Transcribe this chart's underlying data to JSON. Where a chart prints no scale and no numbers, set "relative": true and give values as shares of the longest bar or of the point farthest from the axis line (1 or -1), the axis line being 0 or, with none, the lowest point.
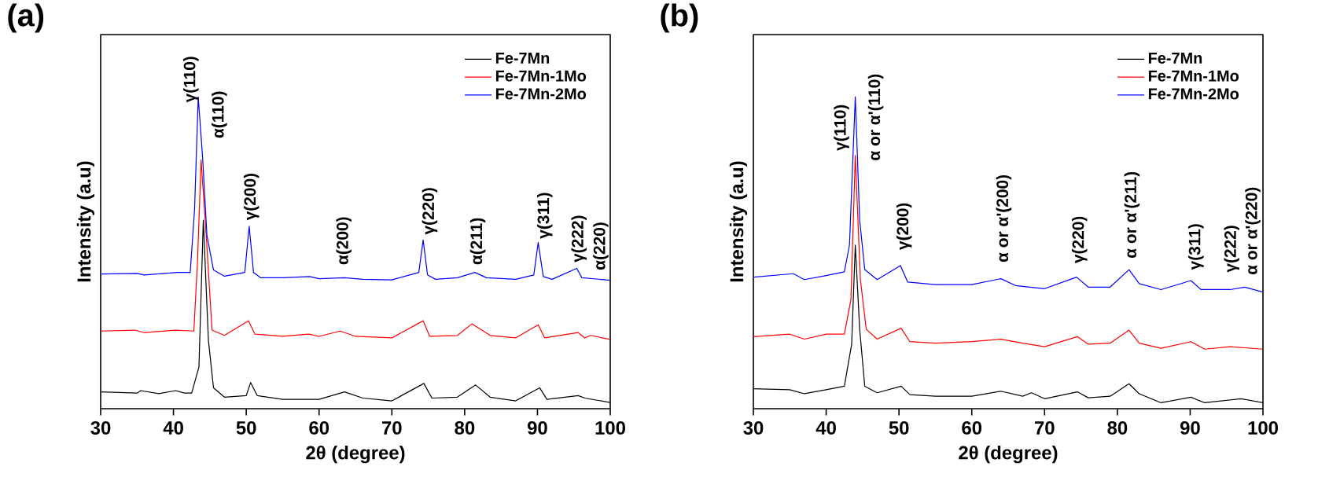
{
  "chart_data": [
    {
      "type": "line",
      "title": "(a)",
      "xlabel": "2θ (degree)",
      "ylabel": "Intensity (a.u)",
      "relative": true,
      "xlim": [
        30,
        100
      ],
      "xticks": [
        30,
        40,
        50,
        60,
        70,
        80,
        90,
        100
      ],
      "legend": "top right",
      "line_style": "solid",
      "series": [
        {
          "name": "Fe-7Mn",
          "color": "#000000",
          "x": [
            30,
            35,
            35.5,
            38,
            40.3,
            41.5,
            42.5,
            43.5,
            44.1,
            44.8,
            45.5,
            47,
            50,
            50.6,
            51.5,
            55,
            60,
            63.5,
            66,
            70,
            74.4,
            75.5,
            79,
            81.5,
            83.5,
            87,
            90.3,
            91.3,
            95.6,
            96.5,
            100
          ],
          "values": [
            0.054,
            0.05,
            0.058,
            0.048,
            0.058,
            0.05,
            0.05,
            0.134,
            0.605,
            0.219,
            0.067,
            0.037,
            0.042,
            0.084,
            0.042,
            0.03,
            0.03,
            0.054,
            0.034,
            0.025,
            0.081,
            0.034,
            0.037,
            0.076,
            0.037,
            0.025,
            0.067,
            0.03,
            0.042,
            0.034,
            0.02
          ]
        },
        {
          "name": "Fe-7Mn-1Mo",
          "color": "#ff0000",
          "x": [
            30,
            34.7,
            36,
            40.3,
            42.8,
            43.3,
            43.8,
            44.5,
            45.3,
            47,
            50.3,
            51.2,
            55,
            58.6,
            60,
            62.9,
            65,
            70,
            74.3,
            75.2,
            79,
            81,
            83.5,
            87,
            90.1,
            91,
            95.6,
            96.5,
            97.3,
            100
          ],
          "values": [
            0.249,
            0.252,
            0.244,
            0.252,
            0.249,
            0.471,
            0.798,
            0.555,
            0.252,
            0.235,
            0.282,
            0.239,
            0.232,
            0.239,
            0.232,
            0.249,
            0.232,
            0.227,
            0.282,
            0.232,
            0.235,
            0.272,
            0.235,
            0.227,
            0.269,
            0.227,
            0.244,
            0.227,
            0.235,
            0.222
          ]
        },
        {
          "name": "Fe-7Mn-2Mo",
          "color": "#0000ff",
          "x": [
            30,
            35,
            36,
            40.5,
            42.3,
            42.9,
            43.4,
            44.0,
            44.6,
            45.5,
            47,
            49.8,
            50.4,
            51.0,
            52,
            55,
            58.7,
            60,
            63.5,
            66,
            70,
            73.7,
            74.3,
            74.9,
            76,
            79,
            81.4,
            83,
            87,
            89.5,
            90.1,
            90.8,
            92,
            95.4,
            96.1,
            100
          ],
          "values": [
            0.432,
            0.434,
            0.429,
            0.437,
            0.437,
            0.639,
            1.0,
            0.807,
            0.555,
            0.445,
            0.425,
            0.437,
            0.585,
            0.437,
            0.42,
            0.42,
            0.424,
            0.417,
            0.42,
            0.415,
            0.413,
            0.437,
            0.541,
            0.429,
            0.415,
            0.42,
            0.437,
            0.42,
            0.415,
            0.429,
            0.533,
            0.424,
            0.415,
            0.45,
            0.42,
            0.412
          ]
        }
      ],
      "annotations": [
        "γ(110)",
        "α(110)",
        "γ(200)",
        "α(200)",
        "γ(220)",
        "α(211)",
        "γ(311)",
        "γ(222)",
        "α(220)"
      ]
    },
    {
      "type": "line",
      "title": "(b)",
      "xlabel": "2θ (degree)",
      "ylabel": "Intensity (a.u)",
      "relative": true,
      "xlim": [
        30,
        100
      ],
      "xticks": [
        30,
        40,
        50,
        60,
        70,
        80,
        90,
        100
      ],
      "legend": "top right",
      "line_style": "solid",
      "series": [
        {
          "name": "Fe-7Mn",
          "color": "#000000",
          "x": [
            30,
            35,
            37,
            40,
            42.5,
            43.5,
            44.0,
            44.6,
            45.3,
            47,
            50.3,
            51.5,
            55,
            60,
            64,
            67,
            68.2,
            70,
            74.5,
            76,
            79,
            81.6,
            83,
            86,
            90.1,
            92,
            97,
            100
          ],
          "values": [
            0.064,
            0.061,
            0.048,
            0.061,
            0.072,
            0.207,
            0.525,
            0.255,
            0.072,
            0.051,
            0.072,
            0.045,
            0.04,
            0.04,
            0.056,
            0.04,
            0.051,
            0.032,
            0.054,
            0.035,
            0.04,
            0.08,
            0.048,
            0.019,
            0.037,
            0.019,
            0.032,
            0.019
          ]
        },
        {
          "name": "Fe-7Mn-1Mo",
          "color": "#ff0000",
          "x": [
            30,
            35,
            37,
            40,
            42.5,
            43.4,
            44.0,
            44.7,
            45.5,
            47,
            50.3,
            51.5,
            55,
            60,
            64,
            67,
            70,
            74.5,
            76,
            79,
            81.6,
            83,
            86,
            90.1,
            92,
            95.5,
            100
          ],
          "values": [
            0.231,
            0.239,
            0.223,
            0.239,
            0.239,
            0.35,
            0.812,
            0.414,
            0.255,
            0.223,
            0.258,
            0.215,
            0.21,
            0.215,
            0.223,
            0.21,
            0.199,
            0.231,
            0.207,
            0.21,
            0.252,
            0.21,
            0.194,
            0.215,
            0.191,
            0.199,
            0.191
          ]
        },
        {
          "name": "Fe-7Mn-2Mo",
          "color": "#0000ff",
          "x": [
            30,
            35.5,
            37,
            40,
            42.5,
            43.2,
            44.0,
            44.6,
            45.3,
            47,
            50.2,
            51.2,
            55,
            60,
            64,
            66,
            70,
            74.4,
            76,
            79,
            81.6,
            83,
            86,
            90.1,
            91.5,
            95.5,
            97.5,
            100
          ],
          "values": [
            0.422,
            0.433,
            0.414,
            0.427,
            0.439,
            0.525,
            1.0,
            0.605,
            0.446,
            0.414,
            0.459,
            0.406,
            0.398,
            0.398,
            0.417,
            0.395,
            0.385,
            0.422,
            0.39,
            0.39,
            0.446,
            0.401,
            0.382,
            0.411,
            0.382,
            0.382,
            0.39,
            0.374
          ]
        }
      ],
      "annotations": [
        "γ(110)",
        "α or α'(110)",
        "γ(200)",
        "α or α'(200)",
        "γ(220)",
        "α or α'(211)",
        "γ(311)",
        "γ(222)",
        "α or α'(220)"
      ]
    }
  ]
}
